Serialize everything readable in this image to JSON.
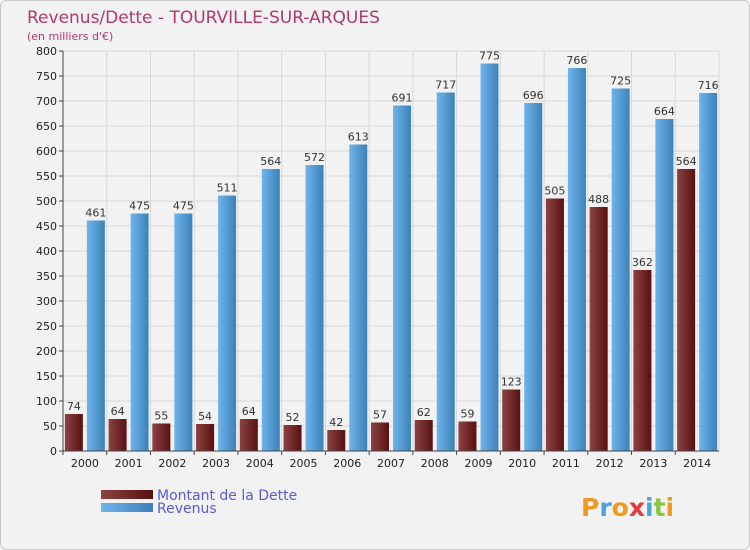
{
  "chart_data": {
    "type": "bar",
    "title": "Revenus/Dette - TOURVILLE-SUR-ARQUES",
    "subtitle": "(en milliers d'€)",
    "categories": [
      "2000",
      "2001",
      "2002",
      "2003",
      "2004",
      "2005",
      "2006",
      "2007",
      "2008",
      "2009",
      "2010",
      "2011",
      "2012",
      "2013",
      "2014"
    ],
    "series": [
      {
        "name": "Montant de la Dette",
        "values": [
          74,
          64,
          55,
          54,
          64,
          52,
          42,
          57,
          62,
          59,
          123,
          505,
          488,
          362,
          564
        ],
        "color": "#6e1414"
      },
      {
        "name": "Revenus",
        "values": [
          461,
          475,
          475,
          511,
          564,
          572,
          613,
          691,
          717,
          775,
          696,
          766,
          725,
          664,
          716
        ],
        "color": "#4ba3e6"
      }
    ],
    "yticks": [
      0,
      50,
      100,
      150,
      200,
      250,
      300,
      350,
      400,
      450,
      500,
      550,
      600,
      650,
      700,
      750,
      800
    ],
    "ylim": [
      0,
      800
    ],
    "grid": true,
    "legend_position": "bottom-left"
  },
  "logo": {
    "letters": [
      "P",
      "r",
      "o",
      "x",
      "i",
      "t",
      "i"
    ],
    "colors": [
      "#f39a1e",
      "#4aa3df",
      "#f39a1e",
      "#e23c3c",
      "#4aa3df",
      "#8cc63f",
      "#f39a1e"
    ]
  }
}
